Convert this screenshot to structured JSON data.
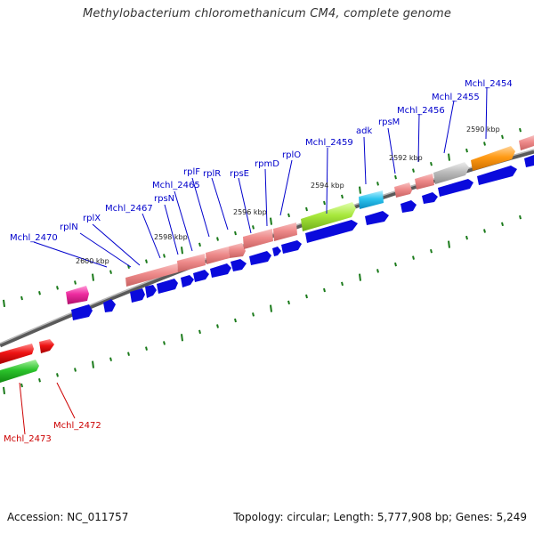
{
  "title": "Methylobacterium chloromethanicum CM4, complete genome",
  "footer": {
    "accession": "Accession: NC_011757",
    "topology": "Topology: circular; Length: 5,777,908 bp; Genes: 5,249"
  },
  "colors": {
    "label_blue": "#0000cc",
    "label_red": "#cc0000",
    "gene_blue": "#0a0adc",
    "tick_green": "#1a7a1a",
    "backbone": "#888888"
  },
  "scale_labels": [
    "2600 kbp",
    "2598 kbp",
    "2596 kbp",
    "2594 kbp",
    "2592 kbp",
    "2590 kbp"
  ],
  "gene_labels_blue": [
    "Mchl_2470",
    "rplN",
    "rplX",
    "Mchl_2467",
    "rpsN",
    "Mchl_2465",
    "rplF",
    "rplR",
    "rpsE",
    "rpmD",
    "rplO",
    "Mchl_2459",
    "adk",
    "rpsM",
    "Mchl_2456",
    "Mchl_2455",
    "Mchl_2454"
  ],
  "gene_labels_red": [
    "Mchl_2473",
    "Mchl_2472"
  ]
}
